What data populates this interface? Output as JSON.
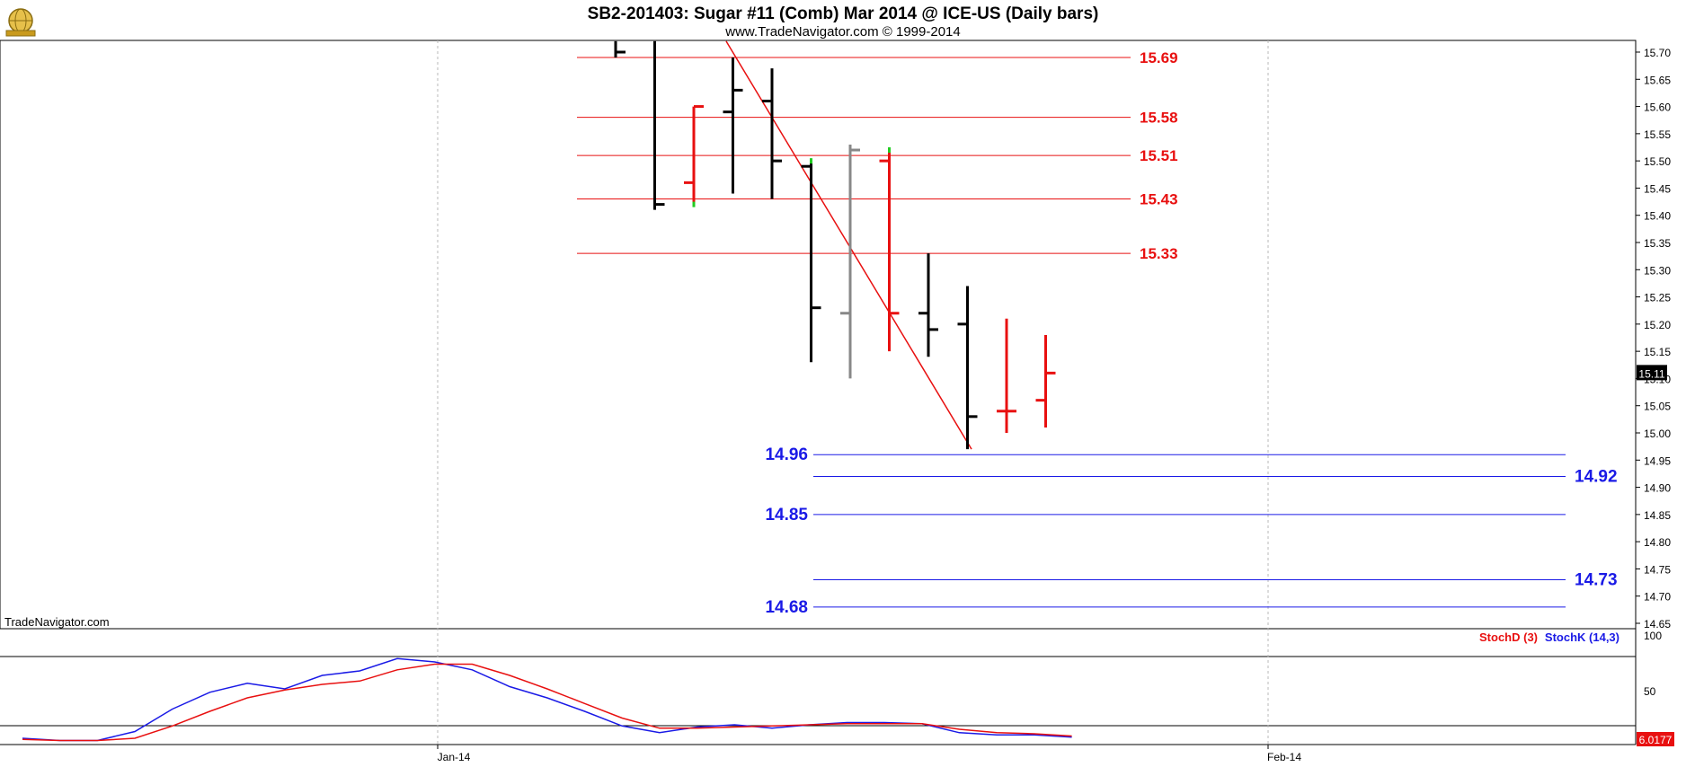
{
  "header": {
    "title": "SB2-201403:  Sugar #11 (Comb) Mar 2014 @ ICE-US  (Daily bars)",
    "subtitle": "www.TradeNavigator.com © 1999-2014",
    "watermark": "TradeNavigator.com",
    "logo_icon": "trade-navigator-globe-icon"
  },
  "chart_data": [
    {
      "type": "ohlc",
      "panel": "price",
      "yaxis_ticks": [
        "15.70",
        "15.65",
        "15.60",
        "15.55",
        "15.50",
        "15.45",
        "15.40",
        "15.35",
        "15.30",
        "15.25",
        "15.20",
        "15.15",
        "15.10",
        "15.05",
        "15.00",
        "14.95",
        "14.90",
        "14.85",
        "14.80",
        "14.75",
        "14.70",
        "14.65"
      ],
      "ylim": [
        14.63,
        15.72
      ],
      "xaxis_ticks": [
        "Jan-14",
        "Feb-14"
      ],
      "last_price_label": "15.11",
      "grid": true,
      "bars": [
        {
          "high": 15.73,
          "low": 15.69,
          "open": null,
          "close": 15.7,
          "color": "#000000"
        },
        {
          "high": 15.73,
          "low": 15.41,
          "open": null,
          "close": 15.42,
          "color": "#000000"
        },
        {
          "high": 15.6,
          "low": 15.42,
          "open": 15.46,
          "close": 15.6,
          "color": "#e81010"
        },
        {
          "high": 15.69,
          "low": 15.44,
          "open": 15.59,
          "close": 15.63,
          "color": "#000000"
        },
        {
          "high": 15.67,
          "low": 15.43,
          "open": 15.61,
          "close": 15.5,
          "color": "#000000"
        },
        {
          "high": 15.5,
          "low": 15.13,
          "open": 15.49,
          "close": 15.23,
          "color": "#000000"
        },
        {
          "high": 15.53,
          "low": 15.1,
          "open": 15.22,
          "close": 15.52,
          "color": "#888888"
        },
        {
          "high": 15.52,
          "low": 15.15,
          "open": 15.5,
          "close": 15.22,
          "color": "#e81010"
        },
        {
          "high": 15.33,
          "low": 15.14,
          "open": 15.22,
          "close": 15.19,
          "color": "#000000"
        },
        {
          "high": 15.27,
          "low": 14.97,
          "open": 15.2,
          "close": 15.03,
          "color": "#000000"
        },
        {
          "high": 15.21,
          "low": 15.0,
          "open": 15.04,
          "close": 15.04,
          "color": "#e81010"
        },
        {
          "high": 15.18,
          "low": 15.01,
          "open": 15.06,
          "close": 15.11,
          "color": "#e81010"
        }
      ],
      "trendline": {
        "from": [
          15.72,
          3
        ],
        "to": [
          14.97,
          9.5
        ],
        "color": "#e81010"
      },
      "red_levels": [
        "15.69",
        "15.58",
        "15.51",
        "15.43",
        "15.33"
      ],
      "blue_levels_left": [
        "14.96",
        "14.85",
        "14.68"
      ],
      "blue_levels_right": [
        "14.92",
        "14.73"
      ]
    },
    {
      "type": "line",
      "panel": "stochastics",
      "legend": [
        "StochD (3)",
        "StochK (14,3)"
      ],
      "yaxis_ticks": [
        "100",
        "50"
      ],
      "last_value_label": "6.0177",
      "series": [
        {
          "name": "StochK (14,3)",
          "color": "#1a1ae6",
          "values": [
            4,
            2,
            2,
            10,
            30,
            45,
            53,
            48,
            60,
            64,
            75,
            72,
            65,
            50,
            40,
            28,
            15,
            9,
            14,
            16,
            13,
            16,
            18,
            18,
            17,
            9,
            7,
            7,
            5
          ]
        },
        {
          "name": "StochD (3)",
          "color": "#e81010",
          "values": [
            3,
            2,
            2,
            4,
            15,
            28,
            40,
            47,
            52,
            55,
            65,
            70,
            70,
            60,
            48,
            35,
            22,
            13,
            13,
            14,
            15,
            16,
            17,
            17,
            17,
            12,
            9,
            8,
            6
          ]
        }
      ]
    }
  ],
  "colors": {
    "red": "#e81010",
    "blue": "#1a1ae6",
    "grid": "#b8b8b8",
    "axis": "#000000"
  }
}
